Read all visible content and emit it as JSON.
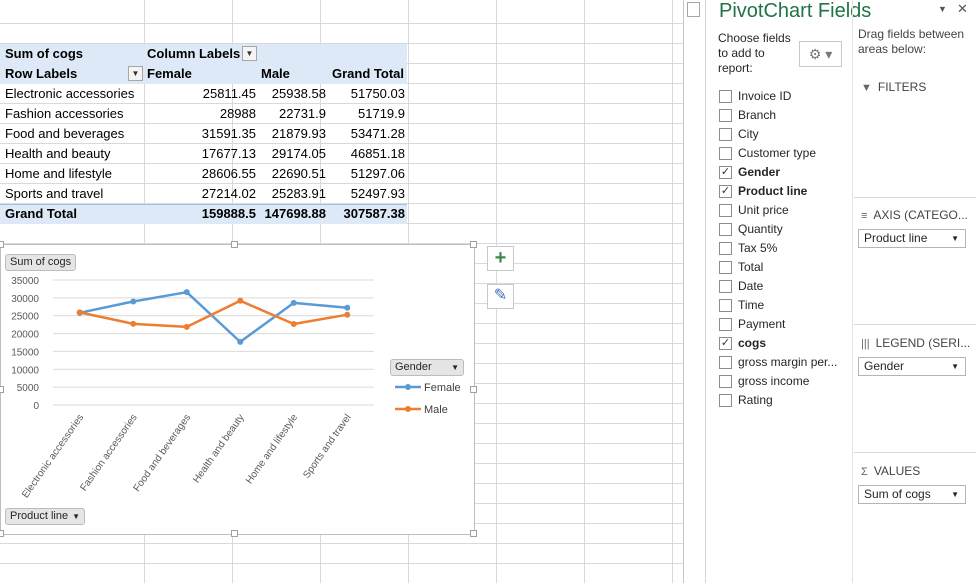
{
  "pivot": {
    "corner_label": "Sum of cogs",
    "column_labels": "Column Labels",
    "row_labels": "Row Labels",
    "headers": [
      "Female",
      "Male",
      "Grand Total"
    ],
    "rows": [
      {
        "label": "Electronic accessories",
        "female": "25811.45",
        "male": "25938.58",
        "total": "51750.03"
      },
      {
        "label": "Fashion accessories",
        "female": "28988",
        "male": "22731.9",
        "total": "51719.9"
      },
      {
        "label": "Food and beverages",
        "female": "31591.35",
        "male": "21879.93",
        "total": "53471.28"
      },
      {
        "label": "Health and beauty",
        "female": "17677.13",
        "male": "29174.05",
        "total": "46851.18"
      },
      {
        "label": "Home and lifestyle",
        "female": "28606.55",
        "male": "22690.51",
        "total": "51297.06"
      },
      {
        "label": "Sports and travel",
        "female": "27214.02",
        "male": "25283.91",
        "total": "52497.93"
      }
    ],
    "grand_total": {
      "label": "Grand Total",
      "female": "159888.5",
      "male": "147698.88",
      "total": "307587.38"
    },
    "dropdown_glyph": "▼"
  },
  "chart": {
    "values_button": "Sum of cogs",
    "axis_button": "Product line",
    "legend_button": "Gender",
    "caret": "▼",
    "add_glyph": "+",
    "brush_glyph": "✎",
    "colors": {
      "female": "#5b9bd5",
      "male": "#ed7d31",
      "grid": "#d9d9d9",
      "axis_text": "#595959"
    }
  },
  "chart_data": {
    "type": "line",
    "categories": [
      "Electronic accessories",
      "Fashion accessories",
      "Food and beverages",
      "Health and beauty",
      "Home and lifestyle",
      "Sports and travel"
    ],
    "series": [
      {
        "name": "Female",
        "values": [
          25811.45,
          28988,
          31591.35,
          17677.13,
          28606.55,
          27214.02
        ]
      },
      {
        "name": "Male",
        "values": [
          25938.58,
          22731.9,
          21879.93,
          29174.05,
          22690.51,
          25283.91
        ]
      }
    ],
    "yticks": [
      "35000",
      "30000",
      "25000",
      "20000",
      "15000",
      "10000",
      "5000",
      "0"
    ],
    "ylim": [
      0,
      35000
    ],
    "grid": true,
    "legend": "right"
  },
  "pane": {
    "title": "PivotChart Fields",
    "dropdown_glyph": "▼",
    "close_glyph": "✕",
    "choose_text": "Choose fields to add to report:",
    "gear_glyph": "⚙ ▾",
    "drag_text": "Drag fields between areas below:",
    "check_glyph": "✓",
    "fields": [
      {
        "label": "Invoice ID",
        "checked": false
      },
      {
        "label": "Branch",
        "checked": false
      },
      {
        "label": "City",
        "checked": false
      },
      {
        "label": "Customer type",
        "checked": false
      },
      {
        "label": "Gender",
        "checked": true
      },
      {
        "label": "Product line",
        "checked": true
      },
      {
        "label": "Unit price",
        "checked": false
      },
      {
        "label": "Quantity",
        "checked": false
      },
      {
        "label": "Tax 5%",
        "checked": false
      },
      {
        "label": "Total",
        "checked": false
      },
      {
        "label": "Date",
        "checked": false
      },
      {
        "label": "Time",
        "checked": false
      },
      {
        "label": "Payment",
        "checked": false
      },
      {
        "label": "cogs",
        "checked": true
      },
      {
        "label": "gross margin per...",
        "checked": false
      },
      {
        "label": "gross income",
        "checked": false
      },
      {
        "label": "Rating",
        "checked": false
      }
    ],
    "areas": {
      "filters": {
        "title": "FILTERS",
        "icon": "▼"
      },
      "axis": {
        "title": "AXIS (CATEGO...",
        "icon": "≡",
        "value": "Product line"
      },
      "legend": {
        "title": "LEGEND (SERI...",
        "icon": "|||",
        "value": "Gender"
      },
      "values": {
        "title": "VALUES",
        "icon": "Σ",
        "value": "Sum of cogs"
      }
    }
  }
}
